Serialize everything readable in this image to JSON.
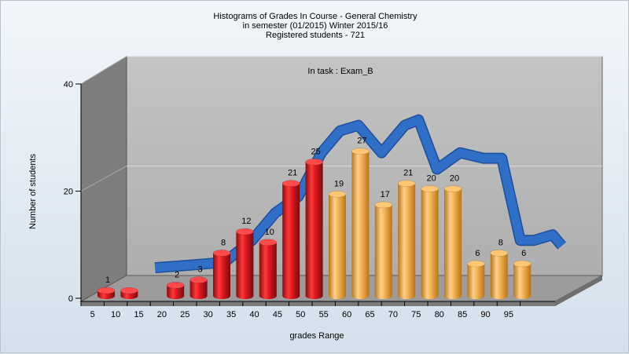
{
  "chart_data": {
    "type": "bar",
    "title_lines": [
      "Histograms of Grades  In Course - General Chemistry",
      "in semester  (01/2015) Winter 2015/16",
      "Registered students - 721"
    ],
    "annotation": "In task : Exam_B",
    "xlabel": "grades Range",
    "ylabel": "Number of students",
    "yticks": [
      "0",
      "20",
      "40"
    ],
    "ylim": [
      0,
      40
    ],
    "categories": [
      "5",
      "10",
      "15",
      "20",
      "25",
      "30",
      "35",
      "40",
      "45",
      "50",
      "55",
      "60",
      "65",
      "70",
      "75",
      "80",
      "85",
      "90",
      "95"
    ],
    "bars": [
      {
        "x": "5",
        "value": 1,
        "label": "1",
        "color": "red"
      },
      {
        "x": "10",
        "value": 1,
        "label": "",
        "color": "red"
      },
      {
        "x": "20",
        "value": 2,
        "label": "2",
        "color": "red"
      },
      {
        "x": "25",
        "value": 3,
        "label": "3",
        "color": "red"
      },
      {
        "x": "30",
        "value": 8,
        "label": "8",
        "color": "red"
      },
      {
        "x": "35",
        "value": 12,
        "label": "12",
        "color": "red"
      },
      {
        "x": "40",
        "value": 10,
        "label": "10",
        "color": "red"
      },
      {
        "x": "45",
        "value": 21,
        "label": "21",
        "color": "red"
      },
      {
        "x": "50",
        "value": 25,
        "label": "25",
        "color": "red"
      },
      {
        "x": "55",
        "value": 19,
        "label": "19",
        "color": "orange"
      },
      {
        "x": "60",
        "value": 27,
        "label": "27",
        "color": "orange"
      },
      {
        "x": "65",
        "value": 17,
        "label": "17",
        "color": "orange"
      },
      {
        "x": "70",
        "value": 21,
        "label": "21",
        "color": "orange"
      },
      {
        "x": "75",
        "value": 20,
        "label": "20",
        "color": "orange"
      },
      {
        "x": "80",
        "value": 20,
        "label": "20",
        "color": "orange"
      },
      {
        "x": "85",
        "value": 6,
        "label": "6",
        "color": "orange"
      },
      {
        "x": "90",
        "value": 8,
        "label": "8",
        "color": "orange"
      },
      {
        "x": "95",
        "value": 6,
        "label": "6",
        "color": "orange"
      }
    ],
    "trend_line": [
      {
        "x": 12,
        "y": 2
      },
      {
        "x": 20,
        "y": 2.5
      },
      {
        "x": 27,
        "y": 3
      },
      {
        "x": 33,
        "y": 7
      },
      {
        "x": 38,
        "y": 12
      },
      {
        "x": 43,
        "y": 15
      },
      {
        "x": 48,
        "y": 23
      },
      {
        "x": 52,
        "y": 27
      },
      {
        "x": 56,
        "y": 28
      },
      {
        "x": 61,
        "y": 23
      },
      {
        "x": 66,
        "y": 28
      },
      {
        "x": 69,
        "y": 29
      },
      {
        "x": 73,
        "y": 20
      },
      {
        "x": 78,
        "y": 23
      },
      {
        "x": 83,
        "y": 22
      },
      {
        "x": 87,
        "y": 22
      },
      {
        "x": 91,
        "y": 7
      },
      {
        "x": 94,
        "y": 7
      },
      {
        "x": 98,
        "y": 8
      },
      {
        "x": 100,
        "y": 6
      }
    ],
    "colors": {
      "red": "#e0191f",
      "orange": "#f0ae4e",
      "trend": "#2f6fc8",
      "back_wall": "#b9b9b9",
      "side_wall": "#808080",
      "floor": "#9a9a9a"
    },
    "grid": true
  }
}
